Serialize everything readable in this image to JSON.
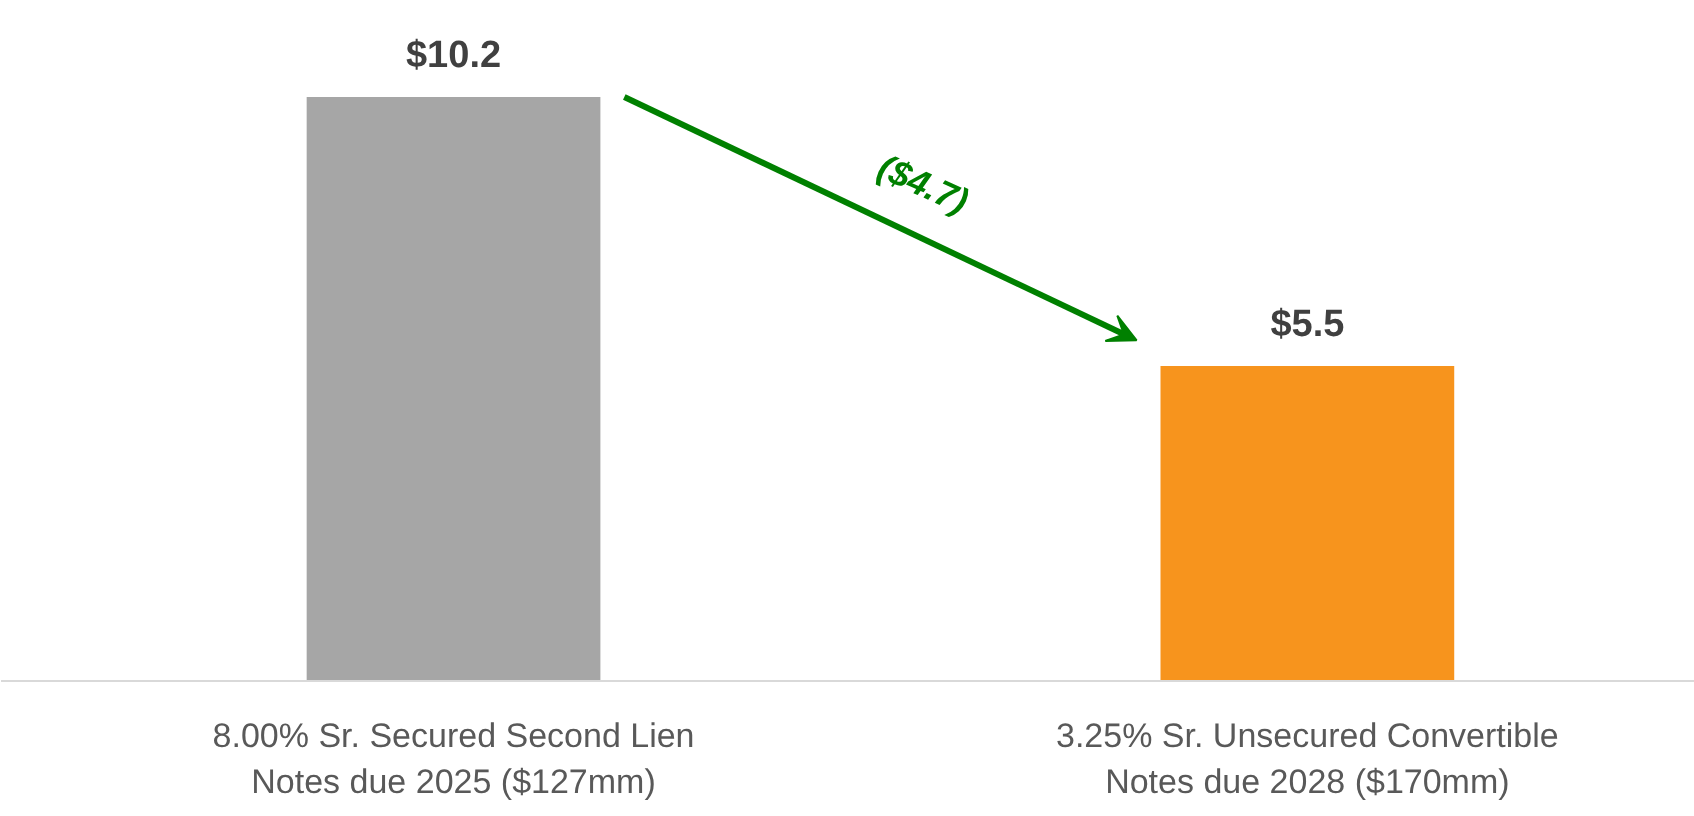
{
  "chart_data": {
    "type": "bar",
    "categories": [
      "8.00% Sr. Secured Second Lien\nNotes due 2025 ($127mm)",
      "3.25% Sr. Unsecured Convertible\nNotes due 2028 ($170mm)"
    ],
    "values": [
      10.2,
      5.5
    ],
    "colors": [
      "#a6a6a6",
      "#f7941d"
    ],
    "value_labels": [
      "$10.2",
      "$5.5"
    ],
    "annotations": [
      "($4.7)"
    ],
    "tick_labels": "x"
  }
}
